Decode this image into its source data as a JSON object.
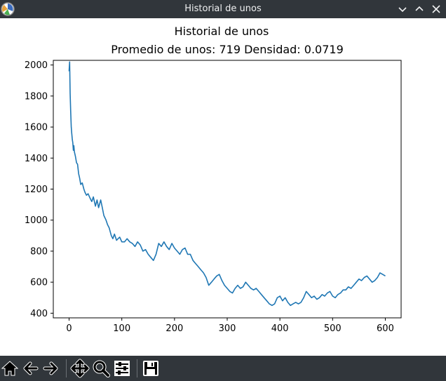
{
  "window": {
    "title": "Historial de unos"
  },
  "toolbar": {
    "icons": [
      "home-icon",
      "back-icon",
      "forward-icon",
      "pan-icon",
      "zoom-icon",
      "configure-subplots-icon",
      "save-icon"
    ]
  },
  "chart_data": {
    "type": "line",
    "title": "Historial de unos",
    "subtitle": "Promedio de unos: 719 Densidad: 0.0719",
    "xlabel": "",
    "ylabel": "",
    "xlim": [
      -30,
      630
    ],
    "ylim": [
      370,
      2030
    ],
    "xticks": [
      0,
      100,
      200,
      300,
      400,
      500,
      600
    ],
    "yticks": [
      400,
      600,
      800,
      1000,
      1200,
      1400,
      1600,
      1800,
      2000
    ],
    "grid": false,
    "line_color": "#1f77b4",
    "series": [
      {
        "x": [
          0,
          1,
          2,
          3,
          4,
          5,
          6,
          7,
          8,
          9,
          10,
          12,
          14,
          16,
          18,
          20,
          22,
          25,
          28,
          30,
          33,
          36,
          40,
          43,
          46,
          50,
          53,
          56,
          60,
          63,
          66,
          70,
          73,
          76,
          80,
          83,
          86,
          90,
          93,
          96,
          100,
          105,
          110,
          115,
          120,
          125,
          130,
          135,
          140,
          145,
          150,
          155,
          160,
          165,
          170,
          175,
          180,
          185,
          190,
          195,
          200,
          205,
          210,
          215,
          220,
          225,
          230,
          235,
          240,
          245,
          250,
          255,
          260,
          265,
          270,
          275,
          280,
          285,
          290,
          295,
          300,
          305,
          310,
          315,
          320,
          325,
          330,
          335,
          340,
          345,
          350,
          355,
          360,
          365,
          370,
          375,
          380,
          385,
          390,
          395,
          400,
          405,
          410,
          415,
          420,
          425,
          430,
          435,
          440,
          445,
          450,
          455,
          460,
          465,
          470,
          475,
          480,
          485,
          490,
          495,
          500,
          505,
          510,
          515,
          520,
          525,
          530,
          535,
          540,
          545,
          550,
          555,
          560,
          565,
          570,
          575,
          580,
          585,
          590,
          595,
          600
        ],
        "y": [
          1960,
          2020,
          1820,
          1700,
          1600,
          1560,
          1520,
          1500,
          1450,
          1480,
          1440,
          1410,
          1370,
          1360,
          1300,
          1270,
          1230,
          1240,
          1200,
          1180,
          1160,
          1170,
          1140,
          1120,
          1150,
          1090,
          1130,
          1080,
          1130,
          1080,
          1030,
          1000,
          970,
          950,
          900,
          880,
          910,
          870,
          880,
          890,
          860,
          860,
          880,
          860,
          850,
          830,
          860,
          840,
          800,
          810,
          780,
          760,
          740,
          780,
          850,
          830,
          860,
          830,
          810,
          850,
          820,
          800,
          780,
          810,
          820,
          780,
          780,
          740,
          720,
          700,
          680,
          660,
          630,
          580,
          600,
          620,
          640,
          650,
          610,
          580,
          560,
          540,
          530,
          560,
          580,
          560,
          570,
          600,
          580,
          560,
          550,
          560,
          540,
          520,
          500,
          480,
          460,
          450,
          460,
          500,
          510,
          480,
          500,
          470,
          450,
          460,
          470,
          460,
          470,
          500,
          540,
          520,
          500,
          510,
          490,
          500,
          520,
          510,
          530,
          540,
          510,
          500,
          520,
          530,
          550,
          550,
          570,
          560,
          580,
          600,
          620,
          610,
          630,
          640,
          620,
          600,
          610,
          630,
          660,
          650,
          640
        ]
      }
    ]
  }
}
